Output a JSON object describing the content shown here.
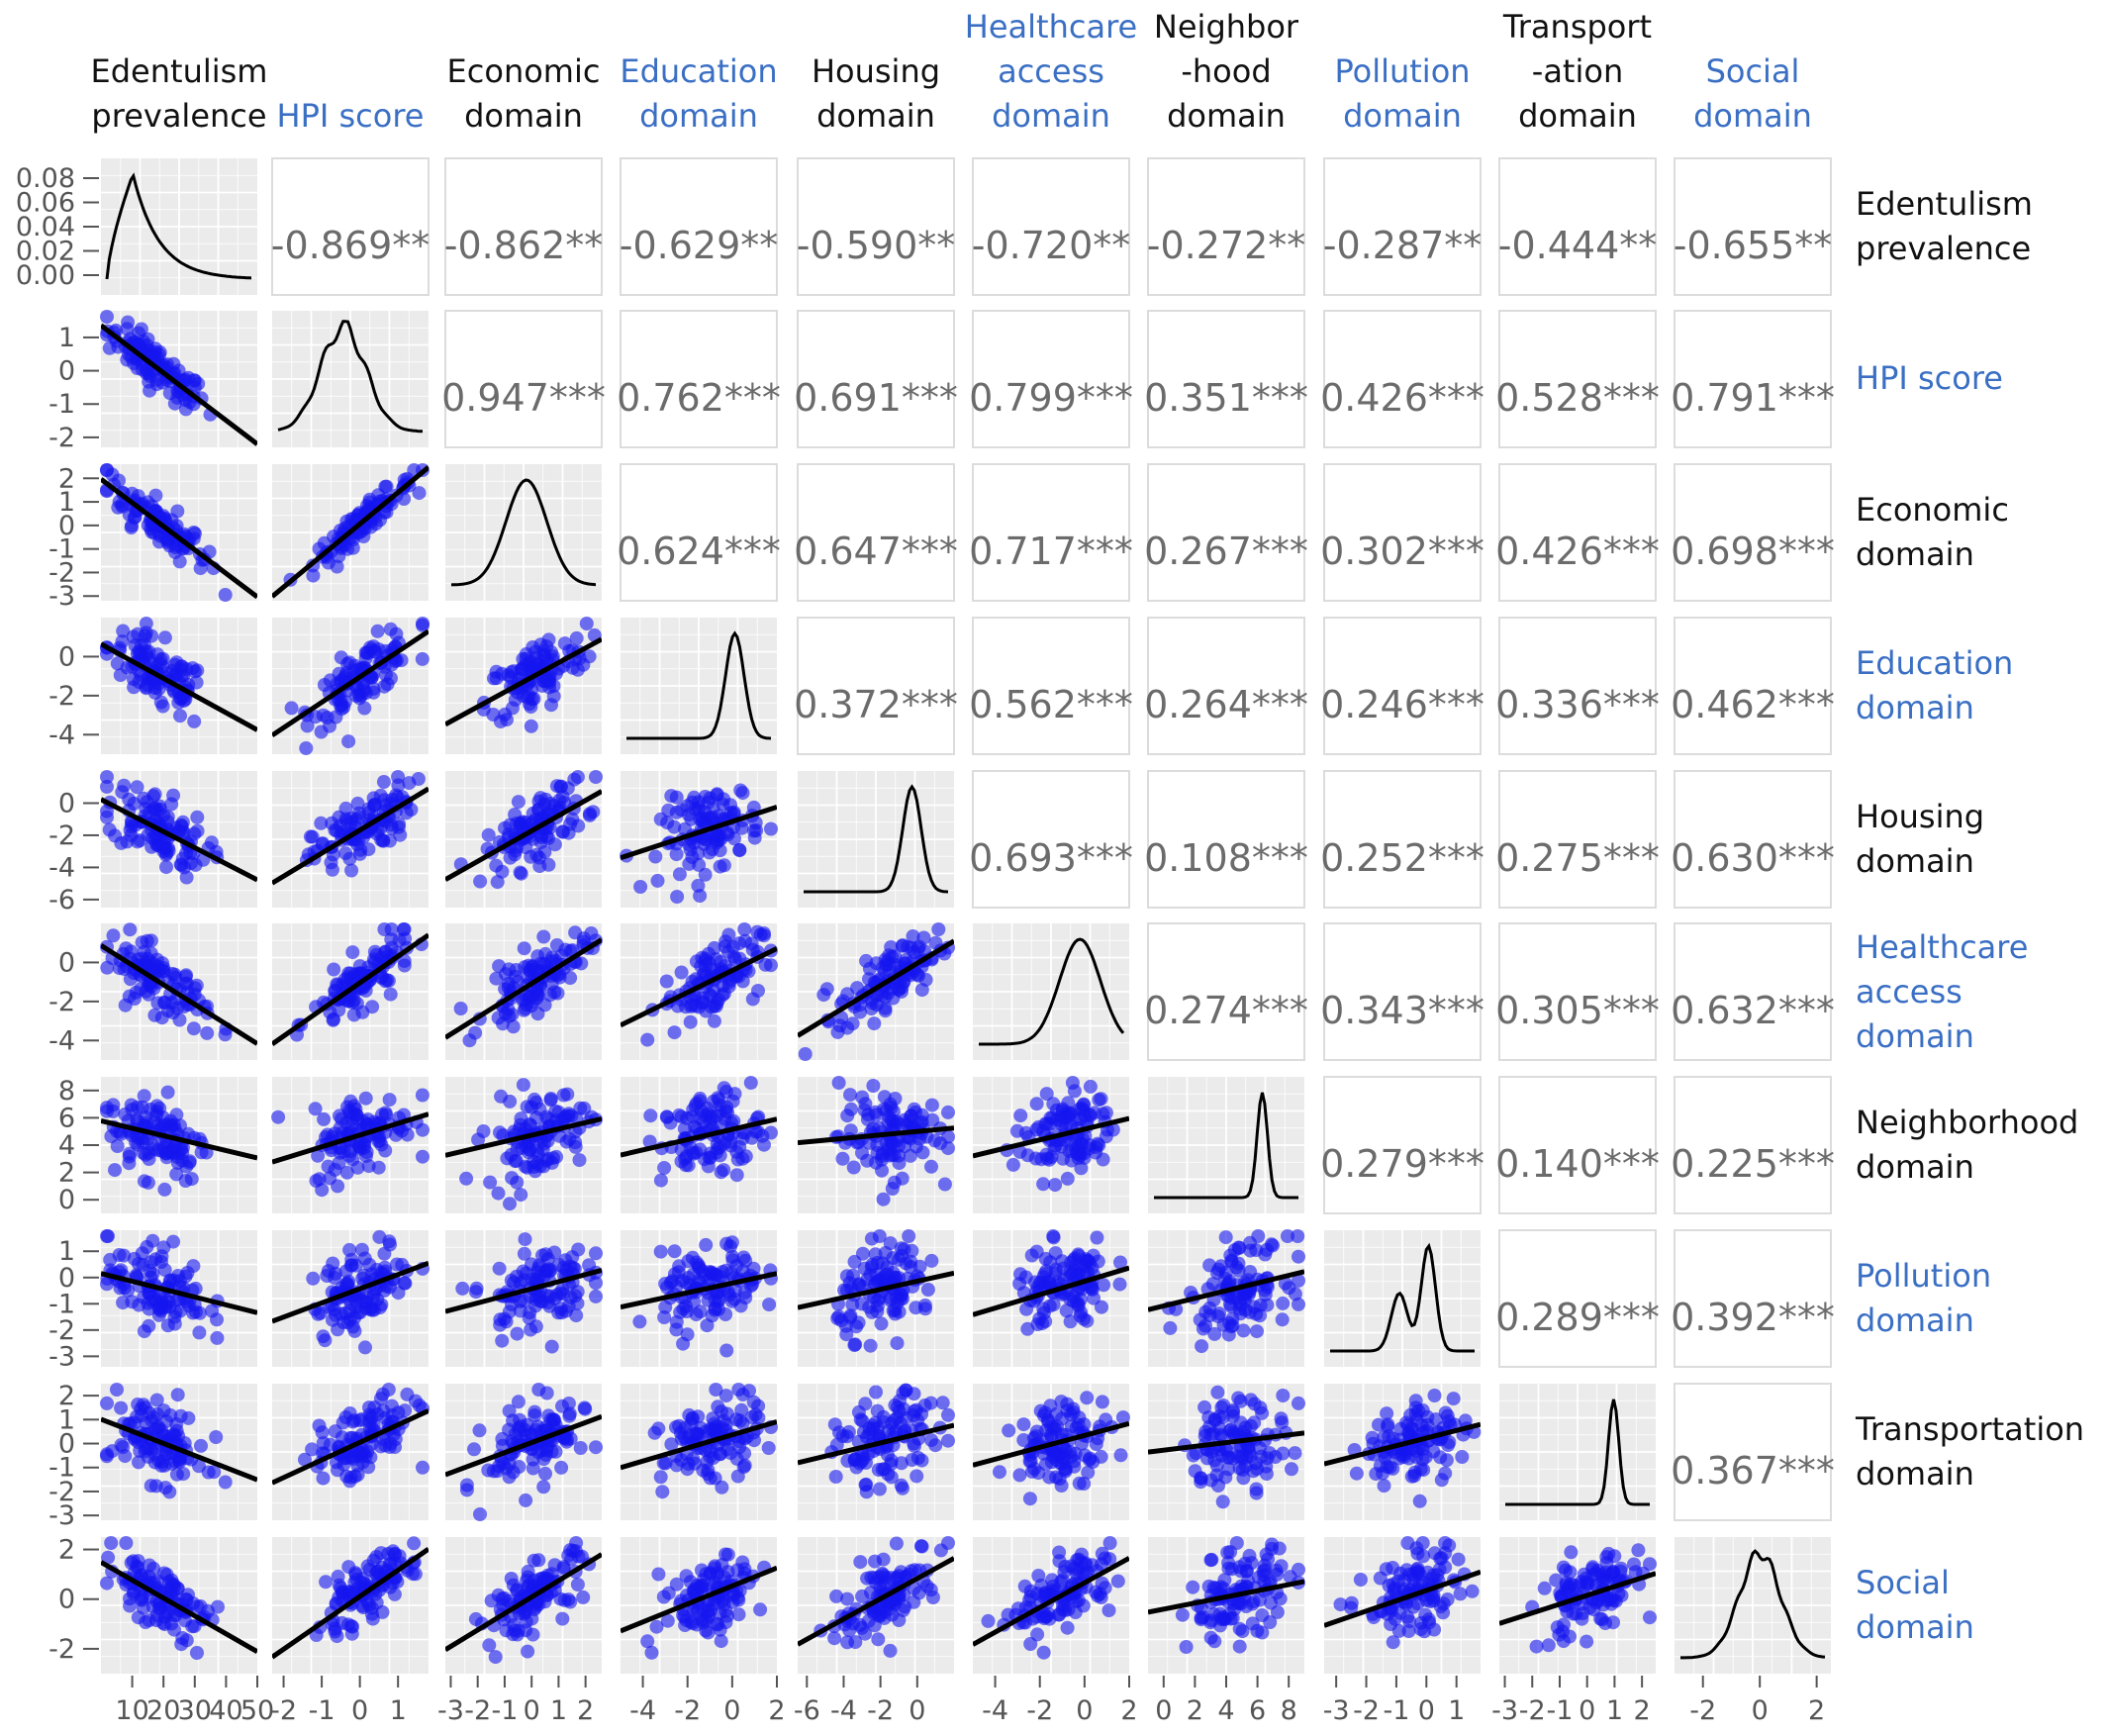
{
  "chart_data": {
    "type": "scatter",
    "grid": true,
    "colors": {
      "points": "#1515f0",
      "fit_line": "#000000",
      "density": "#000000",
      "panel_bg": "#ebebeb",
      "grid": "#ffffff",
      "label_black": "#111111",
      "label_blue": "#3a6fc4",
      "corr_text": "#6b6b6b"
    },
    "variables": [
      {
        "key": "edent",
        "col_label": [
          "Edentulism",
          "prevalence"
        ],
        "row_label": [
          "Edentulism",
          "prevalence"
        ],
        "label_color": "black",
        "range": [
          0,
          50
        ],
        "x_ticks": [
          10,
          20,
          30,
          40,
          50
        ],
        "x_tick_labels": [
          "10",
          "20",
          "30",
          "40",
          "50"
        ],
        "y_ticks": [
          0.0,
          0.02,
          0.04,
          0.06,
          0.08
        ],
        "y_tick_labels": [
          "0.00",
          "0.02",
          "0.04",
          "0.06",
          "0.08"
        ]
      },
      {
        "key": "hpi",
        "col_label": [
          "HPI score"
        ],
        "row_label": [
          "HPI score"
        ],
        "label_color": "blue",
        "range": [
          -2.3,
          1.8
        ],
        "x_ticks": [
          -2,
          -1,
          0,
          1
        ],
        "x_tick_labels": [
          "-2",
          "-1",
          "0",
          "1"
        ],
        "y_ticks": [
          -2,
          -1,
          0,
          1
        ],
        "y_tick_labels": [
          "-2",
          "-1",
          "0",
          "1"
        ]
      },
      {
        "key": "econ",
        "col_label": [
          "Economic",
          "domain"
        ],
        "row_label": [
          "Economic",
          "domain"
        ],
        "label_color": "black",
        "range": [
          -3.2,
          2.6
        ],
        "x_ticks": [
          -3,
          -2,
          -1,
          0,
          1,
          2
        ],
        "x_tick_labels": [
          "-3",
          "-2",
          "-1",
          "0",
          "1",
          "2"
        ],
        "y_ticks": [
          -3,
          -2,
          -1,
          0,
          1,
          2
        ],
        "y_tick_labels": [
          "-3",
          "-2",
          "-1",
          "0",
          "1",
          "2"
        ]
      },
      {
        "key": "educ",
        "col_label": [
          "Education",
          "domain"
        ],
        "row_label": [
          "Education",
          "domain"
        ],
        "label_color": "blue",
        "range": [
          -5,
          2
        ],
        "x_ticks": [
          -4,
          -2,
          0,
          2
        ],
        "x_tick_labels": [
          "-4",
          "-2",
          "0",
          "2"
        ],
        "y_ticks": [
          -4,
          -2,
          0
        ],
        "y_tick_labels": [
          "-4",
          "-2",
          "0"
        ]
      },
      {
        "key": "hous",
        "col_label": [
          "Housing",
          "domain"
        ],
        "row_label": [
          "Housing",
          "domain"
        ],
        "label_color": "black",
        "range": [
          -6.5,
          2
        ],
        "x_ticks": [
          -6,
          -4,
          -2,
          0
        ],
        "x_tick_labels": [
          "-6",
          "-4",
          "-2",
          "0"
        ],
        "y_ticks": [
          -6,
          -4,
          -2,
          0
        ],
        "y_tick_labels": [
          "-6",
          "-4",
          "-2",
          "0"
        ]
      },
      {
        "key": "hlth",
        "col_label": [
          "Healthcare",
          "access",
          "domain"
        ],
        "row_label": [
          "Healthcare",
          "access",
          "domain"
        ],
        "label_color": "blue",
        "range": [
          -5,
          2
        ],
        "x_ticks": [
          -4,
          -2,
          0,
          2
        ],
        "x_tick_labels": [
          "-4",
          "-2",
          "0",
          "2"
        ],
        "y_ticks": [
          -4,
          -2,
          0
        ],
        "y_tick_labels": [
          "-4",
          "-2",
          "0"
        ]
      },
      {
        "key": "neigh",
        "col_label": [
          "Neighbor",
          "-hood",
          "domain"
        ],
        "row_label": [
          "Neighborhood",
          "domain"
        ],
        "label_color": "black",
        "range": [
          -1,
          9
        ],
        "x_ticks": [
          0,
          2,
          4,
          6,
          8
        ],
        "x_tick_labels": [
          "0",
          "2",
          "4",
          "6",
          "8"
        ],
        "y_ticks": [
          0,
          2,
          4,
          6,
          8
        ],
        "y_tick_labels": [
          "0",
          "2",
          "4",
          "6",
          "8"
        ]
      },
      {
        "key": "poll",
        "col_label": [
          "Pollution",
          "domain"
        ],
        "row_label": [
          "Pollution",
          "domain"
        ],
        "label_color": "blue",
        "range": [
          -3.4,
          1.8
        ],
        "x_ticks": [
          -3,
          -2,
          -1,
          0,
          1
        ],
        "x_tick_labels": [
          "-3",
          "-2",
          "-1",
          "0",
          "1"
        ],
        "y_ticks": [
          -3,
          -2,
          -1,
          0,
          1
        ],
        "y_tick_labels": [
          "-3",
          "-2",
          "-1",
          "0",
          "1"
        ]
      },
      {
        "key": "trans",
        "col_label": [
          "Transport",
          "-ation",
          "domain"
        ],
        "row_label": [
          "Transportation",
          "domain"
        ],
        "label_color": "black",
        "range": [
          -3.2,
          2.5
        ],
        "x_ticks": [
          -3,
          -2,
          -1,
          0,
          1,
          2
        ],
        "x_tick_labels": [
          "-3",
          "-2",
          "-1",
          "0",
          "1",
          "2"
        ],
        "y_ticks": [
          -3,
          -2,
          -1,
          0,
          1,
          2
        ],
        "y_tick_labels": [
          "-3",
          "-2",
          "-1",
          "0",
          "1",
          "2"
        ]
      },
      {
        "key": "soc",
        "col_label": [
          "Social",
          "domain"
        ],
        "row_label": [
          "Social",
          "domain"
        ],
        "label_color": "blue",
        "range": [
          -3,
          2.5
        ],
        "x_ticks": [
          -2,
          0,
          2
        ],
        "x_tick_labels": [
          "-2",
          "0",
          "2"
        ],
        "y_ticks": [
          -2,
          0,
          2
        ],
        "y_tick_labels": [
          "-2",
          "0",
          "2"
        ]
      }
    ],
    "correlations": [
      {
        "row": 0,
        "col": 1,
        "label": "-0.869**"
      },
      {
        "row": 0,
        "col": 2,
        "label": "-0.862**"
      },
      {
        "row": 0,
        "col": 3,
        "label": "-0.629**"
      },
      {
        "row": 0,
        "col": 4,
        "label": "-0.590**"
      },
      {
        "row": 0,
        "col": 5,
        "label": "-0.720**"
      },
      {
        "row": 0,
        "col": 6,
        "label": "-0.272**"
      },
      {
        "row": 0,
        "col": 7,
        "label": "-0.287**"
      },
      {
        "row": 0,
        "col": 8,
        "label": "-0.444**"
      },
      {
        "row": 0,
        "col": 9,
        "label": "-0.655**"
      },
      {
        "row": 1,
        "col": 2,
        "label": "0.947***"
      },
      {
        "row": 1,
        "col": 3,
        "label": "0.762***"
      },
      {
        "row": 1,
        "col": 4,
        "label": "0.691***"
      },
      {
        "row": 1,
        "col": 5,
        "label": "0.799***"
      },
      {
        "row": 1,
        "col": 6,
        "label": "0.351***"
      },
      {
        "row": 1,
        "col": 7,
        "label": "0.426***"
      },
      {
        "row": 1,
        "col": 8,
        "label": "0.528***"
      },
      {
        "row": 1,
        "col": 9,
        "label": "0.791***"
      },
      {
        "row": 2,
        "col": 3,
        "label": "0.624***"
      },
      {
        "row": 2,
        "col": 4,
        "label": "0.647***"
      },
      {
        "row": 2,
        "col": 5,
        "label": "0.717***"
      },
      {
        "row": 2,
        "col": 6,
        "label": "0.267***"
      },
      {
        "row": 2,
        "col": 7,
        "label": "0.302***"
      },
      {
        "row": 2,
        "col": 8,
        "label": "0.426***"
      },
      {
        "row": 2,
        "col": 9,
        "label": "0.698***"
      },
      {
        "row": 3,
        "col": 4,
        "label": "0.372***"
      },
      {
        "row": 3,
        "col": 5,
        "label": "0.562***"
      },
      {
        "row": 3,
        "col": 6,
        "label": "0.264***"
      },
      {
        "row": 3,
        "col": 7,
        "label": "0.246***"
      },
      {
        "row": 3,
        "col": 8,
        "label": "0.336***"
      },
      {
        "row": 3,
        "col": 9,
        "label": "0.462***"
      },
      {
        "row": 4,
        "col": 5,
        "label": "0.693***"
      },
      {
        "row": 4,
        "col": 6,
        "label": "0.108***"
      },
      {
        "row": 4,
        "col": 7,
        "label": "0.252***"
      },
      {
        "row": 4,
        "col": 8,
        "label": "0.275***"
      },
      {
        "row": 4,
        "col": 9,
        "label": "0.630***"
      },
      {
        "row": 5,
        "col": 6,
        "label": "0.274***"
      },
      {
        "row": 5,
        "col": 7,
        "label": "0.343***"
      },
      {
        "row": 5,
        "col": 8,
        "label": "0.305***"
      },
      {
        "row": 5,
        "col": 9,
        "label": "0.632***"
      },
      {
        "row": 6,
        "col": 7,
        "label": "0.279***"
      },
      {
        "row": 6,
        "col": 8,
        "label": "0.140***"
      },
      {
        "row": 6,
        "col": 9,
        "label": "0.225***"
      },
      {
        "row": 7,
        "col": 8,
        "label": "0.289***"
      },
      {
        "row": 7,
        "col": 9,
        "label": "0.392***"
      },
      {
        "row": 8,
        "col": 9,
        "label": "0.367***"
      }
    ]
  }
}
